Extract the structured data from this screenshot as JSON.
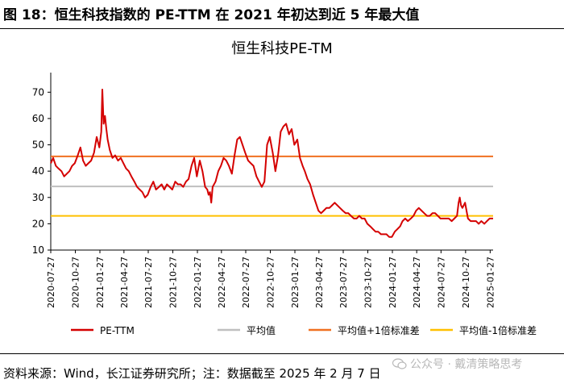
{
  "figure_title": "图 18：恒生科技指数的 PE-TTM 在 2021 年初达到近 5 年最大值",
  "source_note": "资料来源：Wind，长江证券研究所；注：数据截至 2025 年 2 月 7 日",
  "watermark": "公众号 · 戴清策略思考",
  "watermark_icon": "wechat-icon",
  "chart_data": {
    "type": "line",
    "title": "恒生科技PE-TM",
    "xlabel": "",
    "ylabel": "",
    "ylim": [
      10,
      75
    ],
    "yticks": [
      10,
      20,
      30,
      40,
      50,
      60,
      70
    ],
    "xlim": [
      "2020-07-27",
      "2025-02-07"
    ],
    "x_tick_labels": [
      "2020-07-27",
      "2020-10-27",
      "2021-01-27",
      "2021-04-27",
      "2021-07-27",
      "2021-10-27",
      "2022-01-27",
      "2022-04-27",
      "2022-07-27",
      "2022-10-27",
      "2023-01-27",
      "2023-04-27",
      "2023-07-27",
      "2023-10-27",
      "2024-01-27",
      "2024-04-27",
      "2024-07-27",
      "2024-10-27",
      "2025-01-27"
    ],
    "grid": false,
    "legend_position": "bottom",
    "series": [
      {
        "name": "PE-TTM",
        "color": "#d40000",
        "x": [
          "2020-07-27",
          "2020-08-05",
          "2020-08-15",
          "2020-08-25",
          "2020-09-05",
          "2020-09-15",
          "2020-09-25",
          "2020-10-05",
          "2020-10-15",
          "2020-10-25",
          "2020-11-05",
          "2020-11-15",
          "2020-11-25",
          "2020-12-05",
          "2020-12-15",
          "2020-12-25",
          "2021-01-05",
          "2021-01-15",
          "2021-01-25",
          "2021-02-01",
          "2021-02-05",
          "2021-02-10",
          "2021-02-15",
          "2021-02-20",
          "2021-02-25",
          "2021-03-05",
          "2021-03-15",
          "2021-03-25",
          "2021-04-05",
          "2021-04-15",
          "2021-04-25",
          "2021-05-05",
          "2021-05-15",
          "2021-05-25",
          "2021-06-05",
          "2021-06-15",
          "2021-06-25",
          "2021-07-05",
          "2021-07-15",
          "2021-07-25",
          "2021-08-05",
          "2021-08-15",
          "2021-08-25",
          "2021-09-05",
          "2021-09-15",
          "2021-09-25",
          "2021-10-05",
          "2021-10-15",
          "2021-10-25",
          "2021-11-05",
          "2021-11-15",
          "2021-11-25",
          "2021-12-05",
          "2021-12-15",
          "2021-12-25",
          "2022-01-05",
          "2022-01-15",
          "2022-01-25",
          "2022-02-05",
          "2022-02-15",
          "2022-02-25",
          "2022-03-05",
          "2022-03-10",
          "2022-03-15",
          "2022-03-20",
          "2022-03-25",
          "2022-04-05",
          "2022-04-15",
          "2022-04-25",
          "2022-05-05",
          "2022-05-15",
          "2022-05-25",
          "2022-06-05",
          "2022-06-15",
          "2022-06-25",
          "2022-07-05",
          "2022-07-15",
          "2022-07-25",
          "2022-08-05",
          "2022-08-15",
          "2022-08-25",
          "2022-09-05",
          "2022-09-15",
          "2022-09-25",
          "2022-10-05",
          "2022-10-15",
          "2022-10-25",
          "2022-11-05",
          "2022-11-15",
          "2022-11-25",
          "2022-12-05",
          "2022-12-15",
          "2022-12-25",
          "2023-01-05",
          "2023-01-15",
          "2023-01-25",
          "2023-02-05",
          "2023-02-15",
          "2023-02-25",
          "2023-03-05",
          "2023-03-15",
          "2023-03-25",
          "2023-04-05",
          "2023-04-15",
          "2023-04-25",
          "2023-05-05",
          "2023-05-15",
          "2023-05-25",
          "2023-06-05",
          "2023-06-15",
          "2023-06-25",
          "2023-07-05",
          "2023-07-15",
          "2023-07-25",
          "2023-08-05",
          "2023-08-15",
          "2023-08-25",
          "2023-09-05",
          "2023-09-15",
          "2023-09-25",
          "2023-10-05",
          "2023-10-15",
          "2023-10-25",
          "2023-11-05",
          "2023-11-15",
          "2023-11-25",
          "2023-12-05",
          "2023-12-15",
          "2023-12-25",
          "2024-01-05",
          "2024-01-15",
          "2024-01-25",
          "2024-02-05",
          "2024-02-15",
          "2024-02-25",
          "2024-03-05",
          "2024-03-15",
          "2024-03-25",
          "2024-04-05",
          "2024-04-15",
          "2024-04-25",
          "2024-05-05",
          "2024-05-15",
          "2024-05-25",
          "2024-06-05",
          "2024-06-15",
          "2024-06-25",
          "2024-07-05",
          "2024-07-15",
          "2024-07-25",
          "2024-08-05",
          "2024-08-15",
          "2024-08-25",
          "2024-09-05",
          "2024-09-15",
          "2024-09-25",
          "2024-10-01",
          "2024-10-05",
          "2024-10-10",
          "2024-10-15",
          "2024-10-25",
          "2024-11-05",
          "2024-11-15",
          "2024-11-25",
          "2024-12-05",
          "2024-12-15",
          "2024-12-25",
          "2025-01-05",
          "2025-01-15",
          "2025-01-25",
          "2025-02-07"
        ],
        "values": [
          43,
          45,
          42,
          41,
          40,
          38,
          39,
          40,
          42,
          43,
          46,
          49,
          44,
          42,
          43,
          44,
          47,
          53,
          49,
          55,
          71,
          58,
          61,
          56,
          52,
          48,
          45,
          46,
          44,
          45,
          43,
          41,
          40,
          38,
          36,
          34,
          33,
          32,
          30,
          31,
          34,
          36,
          33,
          34,
          35,
          33,
          35,
          34,
          33,
          36,
          35,
          35,
          34,
          36,
          37,
          42,
          45,
          38,
          44,
          40,
          34,
          33,
          31,
          32,
          28,
          34,
          36,
          40,
          42,
          45,
          44,
          42,
          39,
          46,
          52,
          53,
          50,
          47,
          44,
          43,
          42,
          38,
          36,
          34,
          36,
          50,
          53,
          47,
          40,
          46,
          55,
          57,
          58,
          54,
          56,
          50,
          52,
          45,
          42,
          40,
          37,
          35,
          31,
          28,
          25,
          24,
          25,
          26,
          26,
          27,
          28,
          27,
          26,
          25,
          24,
          24,
          23,
          22,
          22,
          23,
          22,
          22,
          20,
          19,
          18,
          17,
          17,
          16,
          16,
          16,
          15,
          15,
          17,
          18,
          19,
          21,
          22,
          21,
          22,
          23,
          25,
          26,
          25,
          24,
          23,
          23,
          24,
          24,
          23,
          22,
          22,
          22,
          22,
          21,
          22,
          23,
          28,
          30,
          27,
          26,
          28,
          22,
          21,
          21,
          21,
          20,
          21,
          20,
          21,
          22,
          22
        ]
      },
      {
        "name": "平均值",
        "color": "#bfbfbf",
        "values": [
          34.2
        ]
      },
      {
        "name": "平均值+1倍标准差",
        "color": "#f07020",
        "values": [
          45.6
        ]
      },
      {
        "name": "平均值-1倍标准差",
        "color": "#ffc000",
        "values": [
          23.0
        ]
      }
    ]
  }
}
